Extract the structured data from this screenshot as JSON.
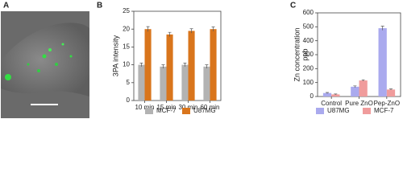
{
  "image_panel_label": "A",
  "chart_data": [
    {
      "type": "bar",
      "panel_label": "B",
      "ylabel": "3PA intensity",
      "categories": [
        "10 min",
        "15 min",
        "30 min",
        "60 min"
      ],
      "series": [
        {
          "name": "MCF-7",
          "color": "#b3b3b3",
          "values": [
            10,
            9.5,
            10,
            9.5
          ],
          "errors": [
            0.5,
            0.5,
            0.5,
            0.5
          ]
        },
        {
          "name": "U87MG",
          "color": "#d9751c",
          "values": [
            20,
            18.5,
            19.5,
            20
          ],
          "errors": [
            0.7,
            0.6,
            0.6,
            0.6
          ]
        }
      ],
      "ylim": [
        0,
        25
      ],
      "yticks": [
        0,
        5,
        10,
        15,
        20,
        25
      ],
      "grid": false
    },
    {
      "type": "bar",
      "panel_label": "C",
      "ylabel": [
        "Zn concentration",
        "ppb"
      ],
      "categories": [
        "Control",
        "Pure ZnO",
        "Pep-ZnO"
      ],
      "series": [
        {
          "name": "U87MG",
          "color": "#aaaaee",
          "values": [
            25,
            70,
            490
          ],
          "errors": [
            4,
            6,
            15
          ]
        },
        {
          "name": "MCF-7",
          "color": "#f09c9c",
          "values": [
            15,
            115,
            50
          ],
          "errors": [
            3,
            5,
            4
          ]
        }
      ],
      "ylim": [
        0,
        600
      ],
      "yticks": [
        0,
        100,
        200,
        300,
        400,
        500,
        600
      ],
      "grid": false
    }
  ]
}
